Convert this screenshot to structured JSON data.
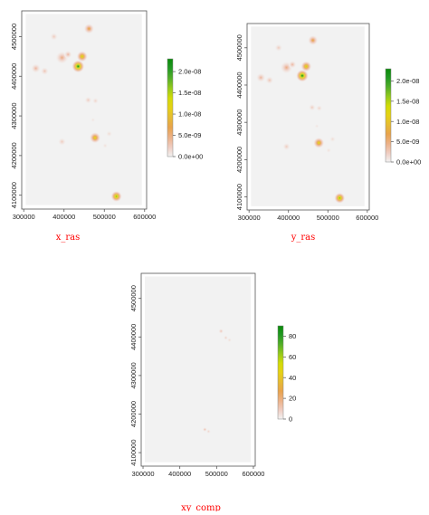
{
  "colors": {
    "title": "#ff0000",
    "frame": "#555555",
    "plot_bg": "#f2f2f2",
    "ramp": [
      "#f2f2f2",
      "#eebcaa",
      "#e8a050",
      "#e6c22a",
      "#e4e000",
      "#8cc81e",
      "#2e9f2e",
      "#0a8a0a"
    ]
  },
  "chart_data": [
    {
      "type": "heatmap",
      "title": "x_ras",
      "x_ticks": [
        300000,
        400000,
        500000,
        600000
      ],
      "x_tick_labels": [
        "300000",
        "400000",
        "500000",
        "600000"
      ],
      "y_ticks": [
        4100000,
        4200000,
        4300000,
        4400000,
        4500000
      ],
      "y_tick_labels": [
        "4100000",
        "4200000",
        "4300000",
        "4400000",
        "4500000"
      ],
      "xlim": [
        295000,
        605000
      ],
      "ylim": [
        4065000,
        4565000
      ],
      "data_extent": {
        "x": [
          305000,
          593000
        ],
        "y": [
          4075000,
          4557000
        ]
      },
      "legend": {
        "min": 0,
        "max": 2.3e-08,
        "ticks": [
          0,
          5e-09,
          1e-08,
          1.5e-08,
          2e-08
        ],
        "tick_labels": [
          "0.0e+00",
          "5.0e-09",
          "1.0e-08",
          "1.5e-08",
          "2.0e-08"
        ]
      },
      "hotspots": [
        {
          "x": 435000,
          "y": 4425000,
          "value": 2.3e-08,
          "radius": 16000
        },
        {
          "x": 445000,
          "y": 4450000,
          "value": 1.4e-08,
          "radius": 14000
        },
        {
          "x": 530000,
          "y": 4097000,
          "value": 1.8e-08,
          "radius": 14000
        },
        {
          "x": 477000,
          "y": 4245000,
          "value": 1.3e-08,
          "radius": 14000
        },
        {
          "x": 462000,
          "y": 4520000,
          "value": 8e-09,
          "radius": 13000
        },
        {
          "x": 395000,
          "y": 4447000,
          "value": 5e-09,
          "radius": 16000
        },
        {
          "x": 410000,
          "y": 4455000,
          "value": 4e-09,
          "radius": 10000
        },
        {
          "x": 330000,
          "y": 4420000,
          "value": 4e-09,
          "radius": 12000
        },
        {
          "x": 352000,
          "y": 4413000,
          "value": 3e-09,
          "radius": 10000
        },
        {
          "x": 375000,
          "y": 4500000,
          "value": 2.5e-09,
          "radius": 10000
        },
        {
          "x": 460000,
          "y": 4340000,
          "value": 2.5e-09,
          "radius": 9000
        },
        {
          "x": 478000,
          "y": 4338000,
          "value": 2e-09,
          "radius": 8000
        },
        {
          "x": 395000,
          "y": 4235000,
          "value": 2.5e-09,
          "radius": 10000
        },
        {
          "x": 512000,
          "y": 4255000,
          "value": 1.5e-09,
          "radius": 8000
        },
        {
          "x": 502000,
          "y": 4225000,
          "value": 1.2e-09,
          "radius": 7000
        },
        {
          "x": 472000,
          "y": 4290000,
          "value": 1e-09,
          "radius": 6000
        }
      ]
    },
    {
      "type": "heatmap",
      "title": "y_ras",
      "x_ticks": [
        300000,
        400000,
        500000,
        600000
      ],
      "x_tick_labels": [
        "300000",
        "400000",
        "500000",
        "600000"
      ],
      "y_ticks": [
        4100000,
        4200000,
        4300000,
        4400000,
        4500000
      ],
      "y_tick_labels": [
        "4100000",
        "4200000",
        "4300000",
        "4400000",
        "4500000"
      ],
      "xlim": [
        295000,
        605000
      ],
      "ylim": [
        4065000,
        4565000
      ],
      "data_extent": {
        "x": [
          305000,
          593000
        ],
        "y": [
          4075000,
          4557000
        ]
      },
      "legend": {
        "min": 0,
        "max": 2.3e-08,
        "ticks": [
          0,
          5e-09,
          1e-08,
          1.5e-08,
          2e-08
        ],
        "tick_labels": [
          "0.0e+00",
          "5.0e-09",
          "1.0e-08",
          "1.5e-08",
          "2.0e-08"
        ]
      },
      "hotspots": [
        {
          "x": 435000,
          "y": 4425000,
          "value": 2.3e-08,
          "radius": 16000
        },
        {
          "x": 445000,
          "y": 4450000,
          "value": 1.4e-08,
          "radius": 14000
        },
        {
          "x": 530000,
          "y": 4097000,
          "value": 1.8e-08,
          "radius": 14000
        },
        {
          "x": 477000,
          "y": 4245000,
          "value": 1.3e-08,
          "radius": 14000
        },
        {
          "x": 462000,
          "y": 4520000,
          "value": 8e-09,
          "radius": 13000
        },
        {
          "x": 395000,
          "y": 4447000,
          "value": 5e-09,
          "radius": 16000
        },
        {
          "x": 410000,
          "y": 4455000,
          "value": 4e-09,
          "radius": 10000
        },
        {
          "x": 330000,
          "y": 4420000,
          "value": 4e-09,
          "radius": 12000
        },
        {
          "x": 352000,
          "y": 4413000,
          "value": 3e-09,
          "radius": 10000
        },
        {
          "x": 375000,
          "y": 4500000,
          "value": 2.5e-09,
          "radius": 10000
        },
        {
          "x": 460000,
          "y": 4340000,
          "value": 2.5e-09,
          "radius": 9000
        },
        {
          "x": 478000,
          "y": 4338000,
          "value": 2e-09,
          "radius": 8000
        },
        {
          "x": 395000,
          "y": 4235000,
          "value": 2.5e-09,
          "radius": 10000
        },
        {
          "x": 512000,
          "y": 4255000,
          "value": 1.5e-09,
          "radius": 8000
        },
        {
          "x": 502000,
          "y": 4225000,
          "value": 1.2e-09,
          "radius": 7000
        },
        {
          "x": 472000,
          "y": 4290000,
          "value": 1e-09,
          "radius": 6000
        }
      ]
    },
    {
      "type": "heatmap",
      "title": "xy_comp",
      "x_ticks": [
        300000,
        400000,
        500000,
        600000
      ],
      "x_tick_labels": [
        "300000",
        "400000",
        "500000",
        "600000"
      ],
      "y_ticks": [
        4100000,
        4200000,
        4300000,
        4400000,
        4500000
      ],
      "y_tick_labels": [
        "4100000",
        "4200000",
        "4300000",
        "4400000",
        "4500000"
      ],
      "xlim": [
        295000,
        605000
      ],
      "ylim": [
        4065000,
        4565000
      ],
      "data_extent": {
        "x": [
          305000,
          593000
        ],
        "y": [
          4075000,
          4557000
        ]
      },
      "legend": {
        "min": 0,
        "max": 90,
        "ticks": [
          0,
          20,
          40,
          60,
          80
        ],
        "tick_labels": [
          "0",
          "20",
          "40",
          "60",
          "80"
        ]
      },
      "hotspots": [
        {
          "x": 512000,
          "y": 4415000,
          "value": 12,
          "radius": 7000
        },
        {
          "x": 525000,
          "y": 4398000,
          "value": 9,
          "radius": 6000
        },
        {
          "x": 535000,
          "y": 4392000,
          "value": 6,
          "radius": 5000
        },
        {
          "x": 468000,
          "y": 4160000,
          "value": 14,
          "radius": 5500
        },
        {
          "x": 478000,
          "y": 4155000,
          "value": 8,
          "radius": 4500
        }
      ]
    }
  ]
}
